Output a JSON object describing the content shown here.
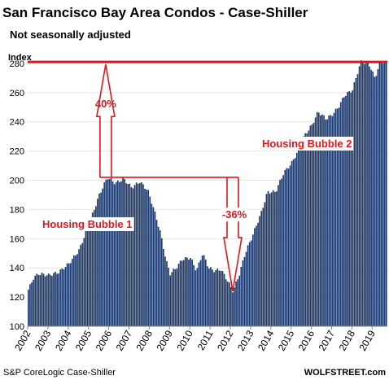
{
  "chart_data": {
    "type": "bar",
    "title": "San Francisco Bay Area Condos - Case-Shiller",
    "subtitle": "Not seasonally adjusted",
    "ylabel": "Index",
    "source": "S&P CoreLogic Case-Shiller",
    "watermark": "WOLFSTREET.com",
    "ylim": [
      100,
      290
    ],
    "yticks": [
      "100",
      "120",
      "140",
      "160",
      "180",
      "200",
      "220",
      "240",
      "260",
      "280"
    ],
    "x_tick_labels": [
      "2002",
      "2003",
      "2004",
      "2005",
      "2006",
      "2007",
      "2008",
      "2009",
      "2010",
      "2011",
      "2012",
      "2013",
      "2014",
      "2015",
      "2016",
      "2017",
      "2018",
      "2019"
    ],
    "bar_color": "#1f3b6e",
    "highlight_color": "#e0161e",
    "reference_line": {
      "value": 281
    },
    "annotations": [
      {
        "text": "40%"
      },
      {
        "text": "-36%"
      },
      {
        "text": "Housing Bubble 1"
      },
      {
        "text": "Housing Bubble 2"
      }
    ],
    "anchors": [
      [
        2002.0,
        125
      ],
      [
        2002.25,
        133
      ],
      [
        2002.5,
        136
      ],
      [
        2003.0,
        135
      ],
      [
        2003.5,
        137
      ],
      [
        2004.0,
        143
      ],
      [
        2004.5,
        152
      ],
      [
        2005.0,
        170
      ],
      [
        2005.5,
        190
      ],
      [
        2005.9,
        202
      ],
      [
        2006.3,
        198
      ],
      [
        2006.7,
        201
      ],
      [
        2007.1,
        195
      ],
      [
        2007.5,
        199
      ],
      [
        2007.9,
        193
      ],
      [
        2008.2,
        180
      ],
      [
        2008.5,
        165
      ],
      [
        2008.8,
        145
      ],
      [
        2009.0,
        136
      ],
      [
        2009.3,
        140
      ],
      [
        2009.6,
        146
      ],
      [
        2010.0,
        147
      ],
      [
        2010.3,
        138
      ],
      [
        2010.6,
        150
      ],
      [
        2010.9,
        140
      ],
      [
        2011.2,
        138
      ],
      [
        2011.5,
        139
      ],
      [
        2011.8,
        132
      ],
      [
        2012.1,
        124
      ],
      [
        2012.4,
        135
      ],
      [
        2012.7,
        150
      ],
      [
        2013.0,
        160
      ],
      [
        2013.5,
        178
      ],
      [
        2013.8,
        192
      ],
      [
        2014.2,
        192
      ],
      [
        2014.6,
        205
      ],
      [
        2015.0,
        212
      ],
      [
        2015.3,
        220
      ],
      [
        2015.6,
        230
      ],
      [
        2016.0,
        238
      ],
      [
        2016.3,
        247
      ],
      [
        2016.7,
        242
      ],
      [
        2017.0,
        245
      ],
      [
        2017.3,
        250
      ],
      [
        2017.6,
        258
      ],
      [
        2018.0,
        262
      ],
      [
        2018.4,
        281
      ],
      [
        2018.8,
        280
      ],
      [
        2019.1,
        270
      ],
      [
        2019.4,
        282
      ],
      [
        2019.6,
        280
      ]
    ]
  }
}
